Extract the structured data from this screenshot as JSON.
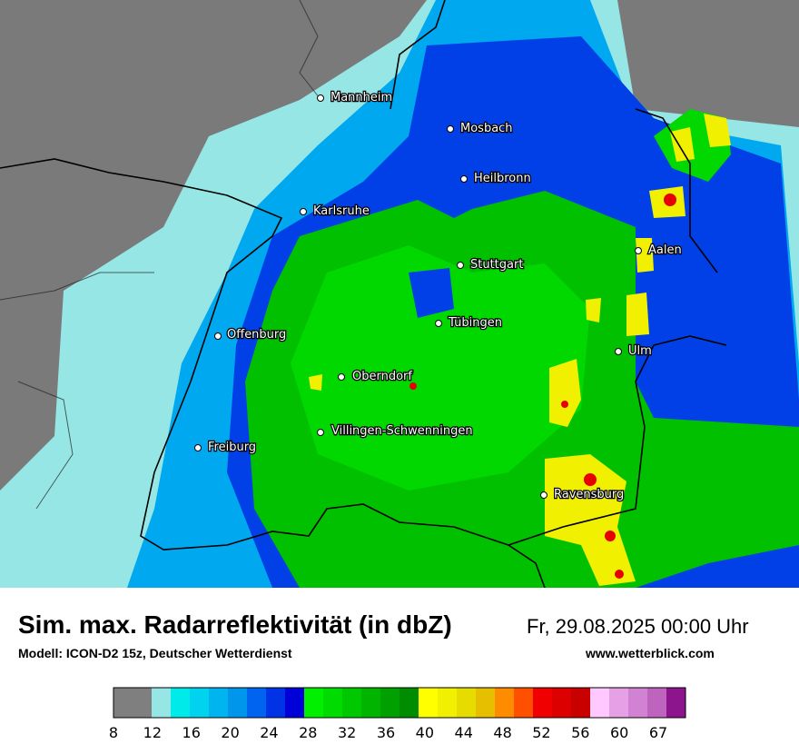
{
  "map": {
    "cities": [
      "Mannheim",
      "Mosbach",
      "Heilbronn",
      "Karlsruhe",
      "Stuttgart",
      "Aalen",
      "Tübingen",
      "Offenburg",
      "Ulm",
      "Oberndorf",
      "Villingen-Schwenningen",
      "Freiburg",
      "Ravensburg"
    ]
  },
  "footer": {
    "title": "Sim. max. Radarreflektivität (in dbZ)",
    "subtitle": "Modell: ICON-D2 15z, Deutscher Wetterdienst",
    "datetime": "Fr, 29.08.2025 00:00 Uhr",
    "website": "www.wetterblick.com"
  },
  "legend": {
    "ticks": [
      8,
      12,
      16,
      20,
      24,
      28,
      32,
      36,
      40,
      44,
      48,
      52,
      56,
      60,
      67
    ],
    "colors": [
      "#7f7f7f",
      "#7f7f7f",
      "#96e6e6",
      "#00eaea",
      "#00d2f0",
      "#00b4f0",
      "#0096eb",
      "#0064f0",
      "#0032e6",
      "#0000d8",
      "#00f000",
      "#00dc00",
      "#00c800",
      "#00b400",
      "#00a000",
      "#008c00",
      "#ffff00",
      "#f0f000",
      "#e6dc00",
      "#e6c000",
      "#ff8c00",
      "#ff5000",
      "#f00000",
      "#dc0000",
      "#c80000",
      "#ffc8ff",
      "#e6a0e6",
      "#d282d2",
      "#be64be",
      "#8c148c"
    ]
  }
}
